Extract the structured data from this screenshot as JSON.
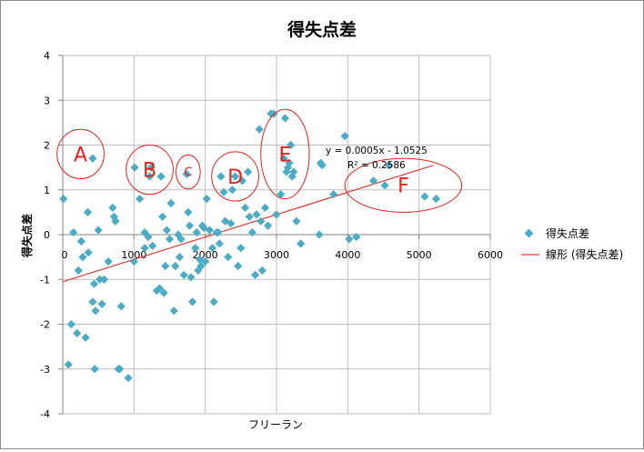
{
  "chart_data": {
    "type": "scatter",
    "title": "得失点差",
    "xlabel": "フリーラン",
    "ylabel": "得失点差",
    "xlim": [
      0,
      6000
    ],
    "ylim": [
      -4,
      4
    ],
    "xticks": [
      "0",
      "1000",
      "2000",
      "3000",
      "4000",
      "5000",
      "6000"
    ],
    "yticks": [
      "4",
      "3",
      "2",
      "1",
      "0",
      "-1",
      "-2",
      "-3",
      "-4"
    ],
    "grid": true,
    "legend_position": "right",
    "colors": {
      "points": "#4bacc6",
      "trendline": "#e03c31",
      "annotation": "#e8201c",
      "grid": "#bfbfbf"
    },
    "series": [
      {
        "name": "得失点差",
        "points": [
          [
            10,
            0.8
          ],
          [
            80,
            -2.9
          ],
          [
            120,
            -2.0
          ],
          [
            150,
            0.05
          ],
          [
            200,
            -2.2
          ],
          [
            220,
            -0.8
          ],
          [
            260,
            -0.15
          ],
          [
            280,
            -0.5
          ],
          [
            320,
            -2.3
          ],
          [
            350,
            0.5
          ],
          [
            360,
            -0.4
          ],
          [
            420,
            1.7
          ],
          [
            420,
            -1.5
          ],
          [
            440,
            -1.1
          ],
          [
            450,
            -3.0
          ],
          [
            460,
            -1.7
          ],
          [
            500,
            0.1
          ],
          [
            520,
            -1.0
          ],
          [
            550,
            -1.55
          ],
          [
            580,
            -1.0
          ],
          [
            640,
            -0.6
          ],
          [
            700,
            0.6
          ],
          [
            720,
            0.4
          ],
          [
            740,
            0.3
          ],
          [
            780,
            -3.0
          ],
          [
            800,
            -3.0
          ],
          [
            820,
            -1.6
          ],
          [
            920,
            -3.2
          ],
          [
            1000,
            -0.6
          ],
          [
            1010,
            1.5
          ],
          [
            1080,
            0.8
          ],
          [
            1150,
            -0.3
          ],
          [
            1150,
            0.05
          ],
          [
            1200,
            -0.05
          ],
          [
            1220,
            1.3
          ],
          [
            1240,
            1.5
          ],
          [
            1260,
            -0.25
          ],
          [
            1320,
            -1.25
          ],
          [
            1360,
            -1.2
          ],
          [
            1380,
            1.3
          ],
          [
            1400,
            0.4
          ],
          [
            1420,
            -1.3
          ],
          [
            1440,
            -0.7
          ],
          [
            1460,
            0.1
          ],
          [
            1500,
            -0.1
          ],
          [
            1520,
            0.7
          ],
          [
            1560,
            -1.7
          ],
          [
            1580,
            -0.7
          ],
          [
            1620,
            0.0
          ],
          [
            1640,
            -0.5
          ],
          [
            1660,
            -0.1
          ],
          [
            1700,
            -0.9
          ],
          [
            1740,
            1.35
          ],
          [
            1760,
            0.5
          ],
          [
            1780,
            0.2
          ],
          [
            1800,
            -0.95
          ],
          [
            1820,
            -1.5
          ],
          [
            1860,
            -0.3
          ],
          [
            1880,
            0.05
          ],
          [
            1900,
            -0.8
          ],
          [
            1920,
            -0.55
          ],
          [
            1940,
            -0.7
          ],
          [
            1960,
            0.2
          ],
          [
            1980,
            0.15
          ],
          [
            2000,
            -0.6
          ],
          [
            2020,
            0.8
          ],
          [
            2060,
            0.1
          ],
          [
            2100,
            -0.3
          ],
          [
            2120,
            -1.5
          ],
          [
            2160,
            0.05
          ],
          [
            2180,
            0.05
          ],
          [
            2200,
            -0.2
          ],
          [
            2220,
            1.3
          ],
          [
            2260,
            0.95
          ],
          [
            2280,
            0.3
          ],
          [
            2320,
            -0.5
          ],
          [
            2360,
            0.25
          ],
          [
            2380,
            1.0
          ],
          [
            2420,
            1.3
          ],
          [
            2460,
            -0.7
          ],
          [
            2500,
            -0.3
          ],
          [
            2520,
            1.2
          ],
          [
            2560,
            0.6
          ],
          [
            2600,
            1.4
          ],
          [
            2620,
            0.4
          ],
          [
            2660,
            0.05
          ],
          [
            2700,
            -0.9
          ],
          [
            2720,
            0.45
          ],
          [
            2760,
            2.35
          ],
          [
            2780,
            0.3
          ],
          [
            2800,
            -0.8
          ],
          [
            2840,
            0.6
          ],
          [
            2880,
            0.2
          ],
          [
            2920,
            2.7
          ],
          [
            2960,
            2.7
          ],
          [
            3000,
            0.45
          ],
          [
            3060,
            0.9
          ],
          [
            3100,
            1.7
          ],
          [
            3120,
            2.6
          ],
          [
            3140,
            1.4
          ],
          [
            3160,
            1.5
          ],
          [
            3180,
            1.6
          ],
          [
            3200,
            2.0
          ],
          [
            3220,
            1.3
          ],
          [
            3240,
            1.4
          ],
          [
            3280,
            0.3
          ],
          [
            3340,
            -0.2
          ],
          [
            3600,
            0.0
          ],
          [
            3620,
            1.6
          ],
          [
            3640,
            1.55
          ],
          [
            3800,
            0.9
          ],
          [
            3960,
            2.2
          ],
          [
            4020,
            -0.1
          ],
          [
            4120,
            -0.05
          ],
          [
            4360,
            1.2
          ],
          [
            4520,
            1.1
          ],
          [
            4580,
            1.55
          ],
          [
            5080,
            0.85
          ],
          [
            5240,
            0.8
          ]
        ]
      }
    ],
    "trendline": {
      "name": "線形 (得失点差)",
      "slope": 0.0005,
      "intercept": -1.0525,
      "x_range": [
        0,
        5200
      ]
    },
    "equation_label": "y = 0.0005x - 1.0525",
    "r2_label": "R² = 0.2586",
    "annotations": [
      {
        "label": "A",
        "cx": 250,
        "cy": 1.8,
        "rx": 330,
        "ry": 0.55
      },
      {
        "label": "B",
        "cx": 1220,
        "cy": 1.45,
        "rx": 330,
        "ry": 0.55
      },
      {
        "label": "C",
        "cx": 1760,
        "cy": 1.4,
        "rx": 170,
        "ry": 0.38
      },
      {
        "label": "D",
        "cx": 2420,
        "cy": 1.3,
        "rx": 330,
        "ry": 0.55
      },
      {
        "label": "E",
        "cx": 3120,
        "cy": 1.8,
        "rx": 340,
        "ry": 1.0
      },
      {
        "label": "F",
        "cx": 4780,
        "cy": 1.1,
        "rx": 820,
        "ry": 0.6
      }
    ]
  }
}
